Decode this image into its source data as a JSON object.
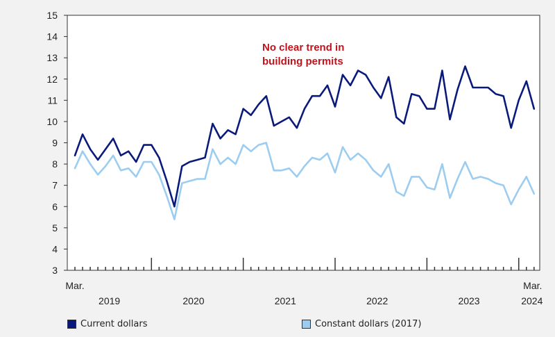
{
  "chart_data": {
    "type": "line",
    "title": "",
    "ylim": [
      3,
      15
    ],
    "yticks": [
      3,
      4,
      5,
      6,
      7,
      8,
      9,
      10,
      11,
      12,
      13,
      14,
      15
    ],
    "xlabel_start": "Mar.",
    "xlabel_end": "Mar.",
    "years": [
      "2019",
      "2020",
      "2021",
      "2022",
      "2023",
      "2024"
    ],
    "annotation": {
      "line1": "No clear trend in",
      "line2": "building permits",
      "color": "#c0141c"
    },
    "x_start": "2019-03",
    "x_end": "2024-03",
    "series": [
      {
        "name": "Current dollars",
        "color": "#0a1a7a",
        "values": [
          8.4,
          9.4,
          8.7,
          8.2,
          8.7,
          9.2,
          8.4,
          8.6,
          8.1,
          8.9,
          8.9,
          8.3,
          7.2,
          6.0,
          7.9,
          8.1,
          8.2,
          8.3,
          9.9,
          9.2,
          9.6,
          9.4,
          10.6,
          10.3,
          10.8,
          11.2,
          9.8,
          10.0,
          10.2,
          9.7,
          10.6,
          11.2,
          11.2,
          11.7,
          10.7,
          12.2,
          11.7,
          12.4,
          12.2,
          11.6,
          11.1,
          12.1,
          10.2,
          9.9,
          11.3,
          11.2,
          10.6,
          10.6,
          12.4,
          10.1,
          11.5,
          12.6,
          11.6,
          11.6,
          11.6,
          11.3,
          11.2,
          9.7,
          11.0,
          11.9,
          10.6
        ]
      },
      {
        "name": "Constant dollars (2017)",
        "color": "#9ccdf0",
        "values": [
          7.8,
          8.6,
          8.0,
          7.5,
          7.9,
          8.4,
          7.7,
          7.8,
          7.4,
          8.1,
          8.1,
          7.5,
          6.5,
          5.4,
          7.1,
          7.2,
          7.3,
          7.3,
          8.7,
          8.0,
          8.3,
          8.0,
          8.9,
          8.6,
          8.9,
          9.0,
          7.7,
          7.7,
          7.8,
          7.4,
          7.9,
          8.3,
          8.2,
          8.5,
          7.6,
          8.8,
          8.2,
          8.5,
          8.2,
          7.7,
          7.4,
          8.0,
          6.7,
          6.5,
          7.4,
          7.4,
          6.9,
          6.8,
          8.0,
          6.4,
          7.3,
          8.1,
          7.3,
          7.4,
          7.3,
          7.1,
          7.0,
          6.1,
          6.8,
          7.4,
          6.6
        ]
      }
    ],
    "legend_position": "bottom",
    "grid": false
  }
}
